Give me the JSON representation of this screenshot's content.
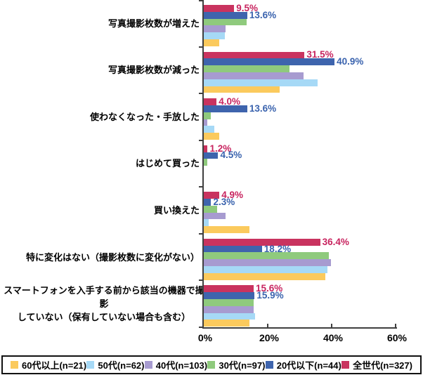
{
  "chart_data": {
    "type": "bar",
    "orientation": "horizontal",
    "title": "",
    "xlabel": "",
    "ylabel": "",
    "grid": false,
    "categories": [
      [
        "写真撮影枚数が増えた"
      ],
      [
        "写真撮影枚数が減った"
      ],
      [
        "使わなくなった・手放した"
      ],
      [
        "はじめて買った"
      ],
      [
        "買い換えた"
      ],
      [
        "特に変化はない（撮影枚数に変化がない）"
      ],
      [
        "スマートフォンを入手する前から該当の機器で撮影",
        "していない（保有していない場合も含む）"
      ]
    ],
    "series": [
      {
        "name": "全世代(n=327)",
        "color": "#C9335F",
        "label_color": "#C8245F",
        "show_value_labels": true,
        "values": [
          9.5,
          31.5,
          4.0,
          1.2,
          4.9,
          36.4,
          15.6
        ]
      },
      {
        "name": "20代以下(n=44)",
        "color": "#3E64AD",
        "label_color": "#3A63AE",
        "show_value_labels": true,
        "values": [
          13.6,
          40.9,
          13.6,
          4.5,
          2.3,
          18.2,
          15.9
        ]
      },
      {
        "name": "30代(n=97)",
        "color": "#8FCA7D",
        "label_color": "#8FCA7D",
        "show_value_labels": false,
        "values": [
          13.4,
          26.8,
          2.1,
          1.0,
          4.1,
          39.2,
          15.5
        ]
      },
      {
        "name": "40代(n=103)",
        "color": "#A79BD0",
        "label_color": "#A79BD0",
        "show_value_labels": false,
        "values": [
          6.8,
          31.1,
          1.0,
          0,
          6.8,
          39.8,
          15.5
        ]
      },
      {
        "name": "50代(n=62)",
        "color": "#A6D9F6",
        "label_color": "#A6D9F6",
        "show_value_labels": false,
        "values": [
          6.5,
          35.5,
          3.2,
          0,
          1.6,
          38.7,
          16.1
        ]
      },
      {
        "name": "60代以上(n=21)",
        "color": "#FBCA5D",
        "label_color": "#FBCA5D",
        "show_value_labels": false,
        "values": [
          4.8,
          23.8,
          4.8,
          0,
          14.3,
          38.1,
          14.3
        ]
      }
    ],
    "x_axis": {
      "min": 0,
      "max": 60,
      "tick_step": 20,
      "tick_values": [
        0,
        20,
        40,
        60
      ],
      "tick_labels": [
        "0%",
        "20%",
        "40%",
        "60%"
      ]
    },
    "legend": {
      "position": "bottom",
      "order": "reverse-of-series"
    },
    "value_label_format": "{value}%",
    "axis_color": "#3f3f3f"
  }
}
